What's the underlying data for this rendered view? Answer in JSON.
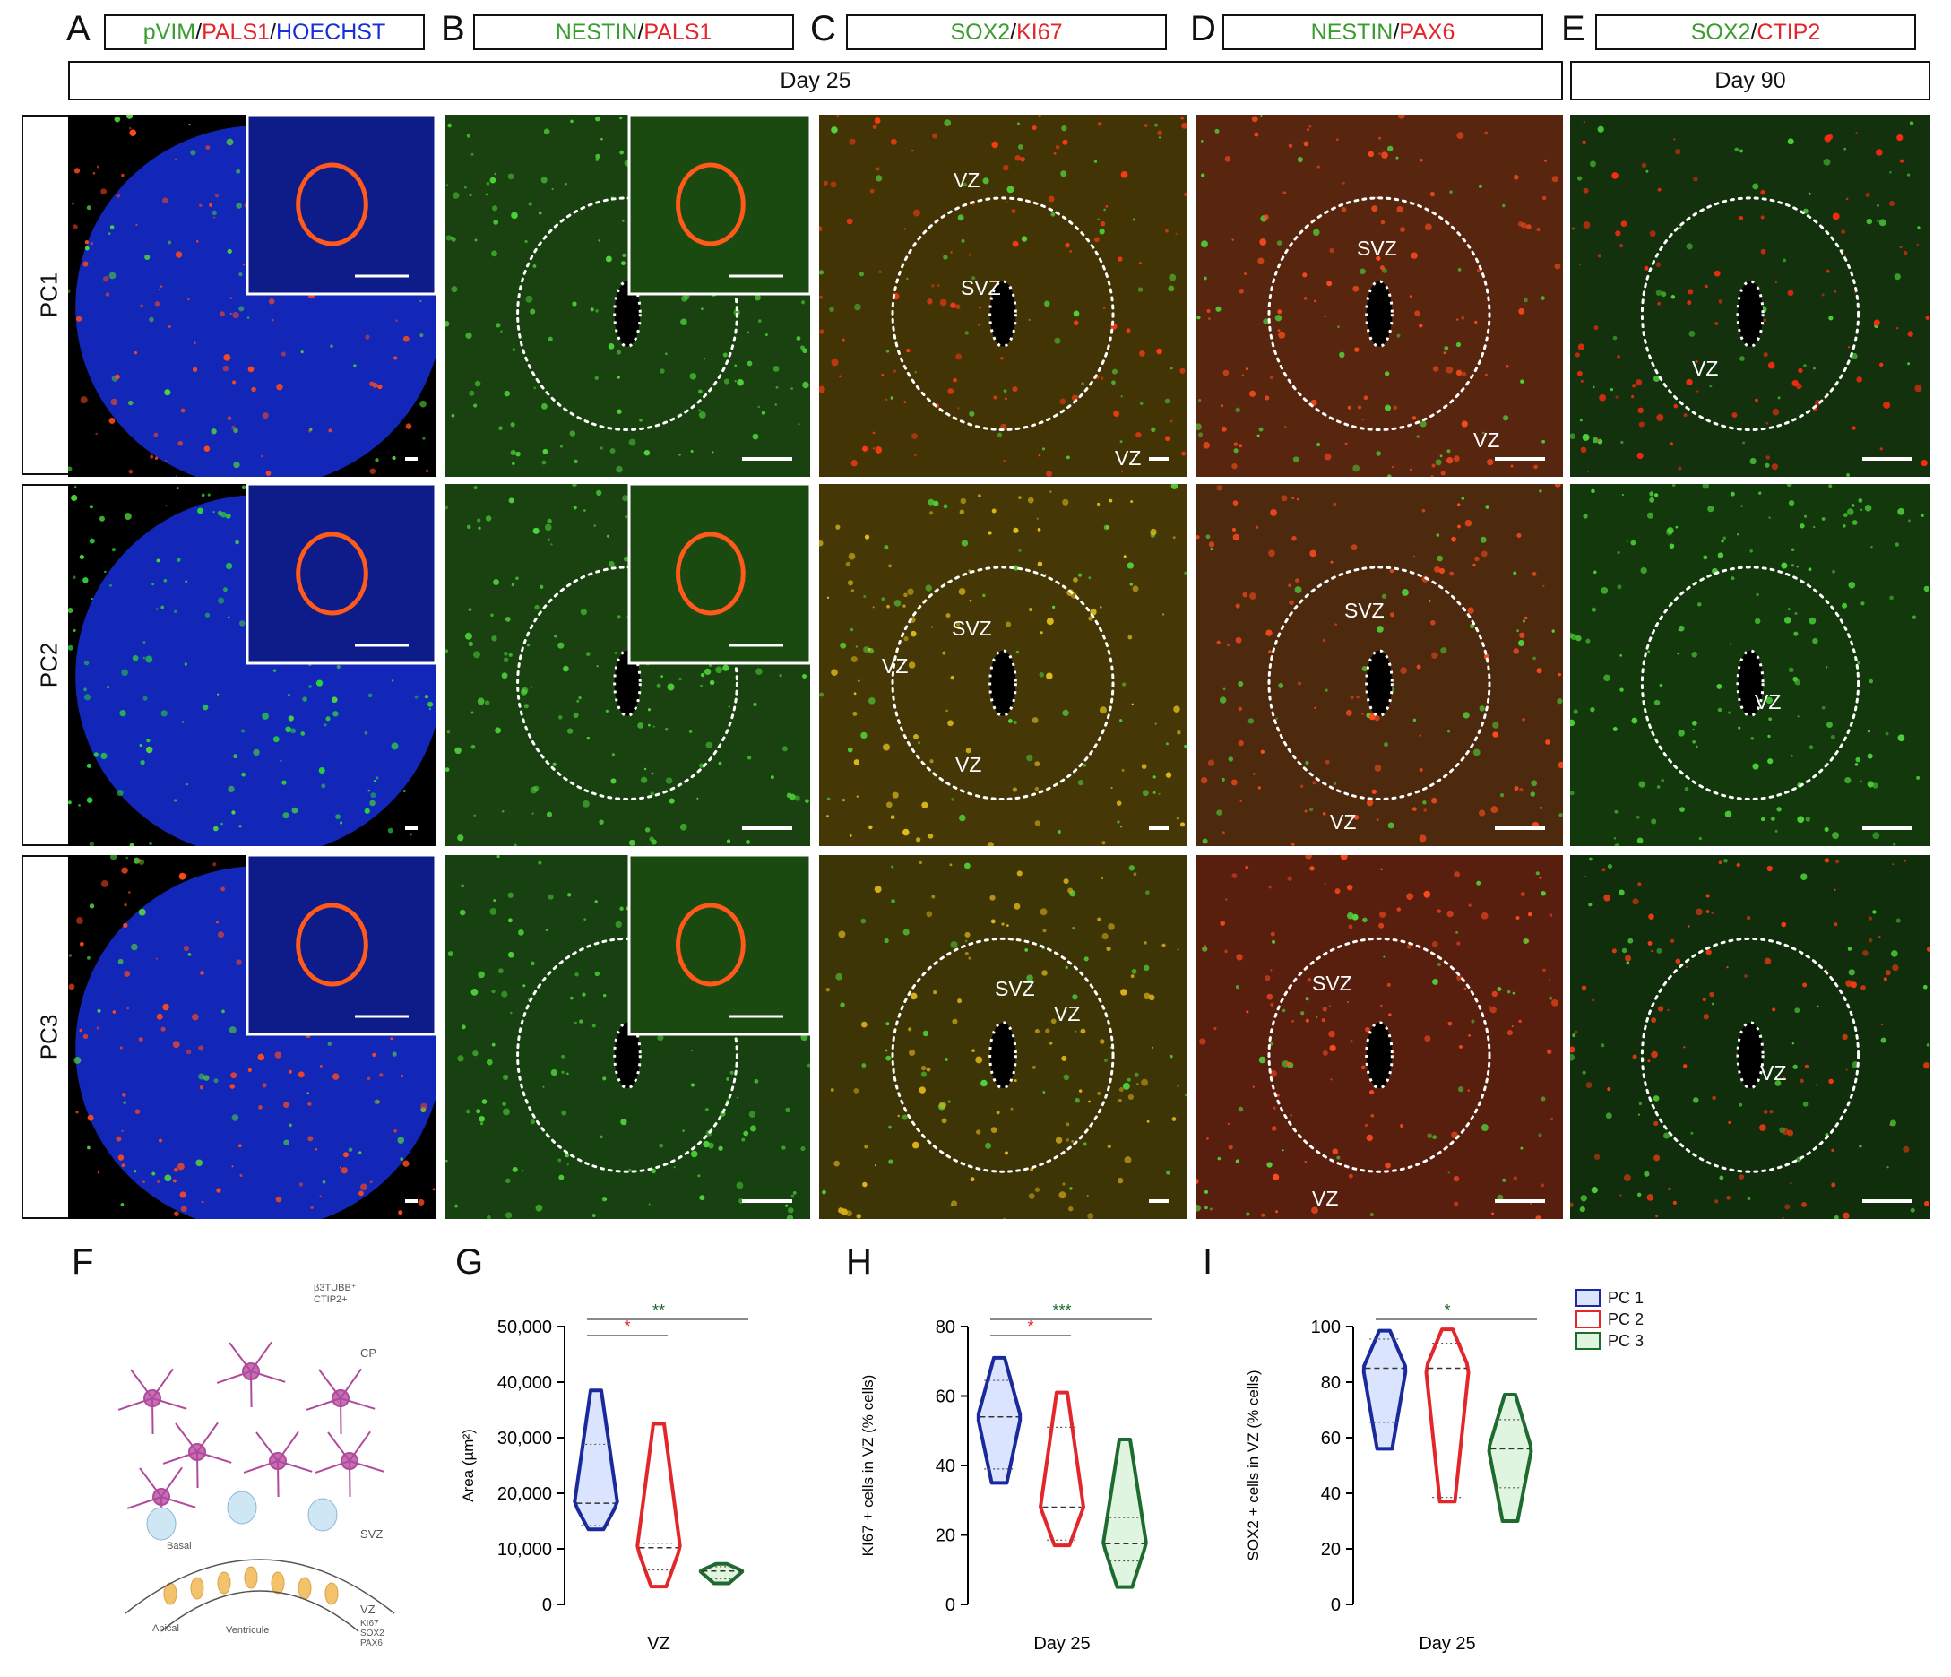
{
  "panels": {
    "A": {
      "letter": "A",
      "marker1": "pVIM",
      "marker2": "PALS1",
      "marker3": "HOECHST"
    },
    "B": {
      "letter": "B",
      "marker1": "NESTIN",
      "marker2": "PALS1"
    },
    "C": {
      "letter": "C",
      "marker1": "SOX2",
      "marker2": "KI67"
    },
    "D": {
      "letter": "D",
      "marker1": "NESTIN",
      "marker2": "PAX6"
    },
    "E": {
      "letter": "E",
      "marker1": "SOX2",
      "marker2": "CTIP2"
    }
  },
  "sep": "/",
  "days": {
    "left": "Day 25",
    "right": "Day 90"
  },
  "rows": [
    "PC1",
    "PC2",
    "PC3"
  ],
  "zones": {
    "vz": "VZ",
    "svz": "SVZ"
  },
  "colors": {
    "green": "#3a9d2f",
    "red": "#e3262a",
    "blue": "#1b2fd6",
    "pc1": "#1a2a9c",
    "pc2": "#e3262a",
    "pc3": "#1d6b2e"
  },
  "schematic": {
    "letter": "F",
    "top_marker_1": "β3TUBB⁺",
    "top_marker_2": "CTIP2+",
    "cp": "CP",
    "svz": "SVZ",
    "basal": "Basal",
    "vz": "VZ",
    "vz_markers": [
      "KI67",
      "SOX2",
      "PAX6"
    ],
    "apical": "Apical",
    "ventricule": "Ventricule"
  },
  "legend": [
    "PC 1",
    "PC 2",
    "PC 3"
  ],
  "chart_data": [
    {
      "letter": "G",
      "type": "violin",
      "ylabel": "Area (µm²)",
      "xlabel": "VZ",
      "ylim": [
        0,
        50000
      ],
      "yticks": [
        "0",
        "10,000",
        "20,000",
        "30,000",
        "40,000",
        "50,000"
      ],
      "series": [
        {
          "name": "PC 1",
          "min": 13500,
          "q1": 14200,
          "median": 18200,
          "q3": 28800,
          "max": 38500
        },
        {
          "name": "PC 2",
          "min": 3200,
          "q1": 6200,
          "median": 10200,
          "q3": 11000,
          "max": 32500
        },
        {
          "name": "PC 3",
          "min": 3800,
          "q1": 4600,
          "median": 6000,
          "q3": 6800,
          "max": 7300
        }
      ],
      "significance": [
        {
          "pair": [
            "PC 1",
            "PC 2"
          ],
          "label": "*"
        },
        {
          "pair": [
            "PC 1",
            "PC 3"
          ],
          "label": "**"
        }
      ]
    },
    {
      "letter": "H",
      "type": "violin",
      "ylabel": "KI67 + cells in VZ (% cells)",
      "xlabel": "Day 25",
      "ylim": [
        0,
        80
      ],
      "yticks": [
        "0",
        "20",
        "40",
        "60",
        "80"
      ],
      "series": [
        {
          "name": "PC 1",
          "min": 35,
          "q1": 39,
          "median": 54,
          "q3": 64.5,
          "max": 71
        },
        {
          "name": "PC 2",
          "min": 17,
          "q1": 18.5,
          "median": 28,
          "q3": 51,
          "max": 61
        },
        {
          "name": "PC 3",
          "min": 5,
          "q1": 12.5,
          "median": 17.5,
          "q3": 25,
          "max": 47.5
        }
      ],
      "significance": [
        {
          "pair": [
            "PC 1",
            "PC 2"
          ],
          "label": "*"
        },
        {
          "pair": [
            "PC 1",
            "PC 3"
          ],
          "label": "***"
        }
      ]
    },
    {
      "letter": "I",
      "type": "violin",
      "ylabel": "SOX2 + cells in VZ (% cells)",
      "xlabel": "Day 25",
      "ylim": [
        0,
        100
      ],
      "yticks": [
        "0",
        "20",
        "40",
        "60",
        "80",
        "100"
      ],
      "series": [
        {
          "name": "PC 1",
          "min": 56,
          "q1": 65.5,
          "median": 85,
          "q3": 95.5,
          "max": 98.5
        },
        {
          "name": "PC 2",
          "min": 37,
          "q1": 38.5,
          "median": 85,
          "q3": 94,
          "max": 99
        },
        {
          "name": "PC 3",
          "min": 30,
          "q1": 42,
          "median": 56,
          "q3": 66.5,
          "max": 75.5
        }
      ],
      "significance": [
        {
          "pair": [
            "PC 1",
            "PC 3"
          ],
          "label": "*"
        }
      ]
    }
  ]
}
